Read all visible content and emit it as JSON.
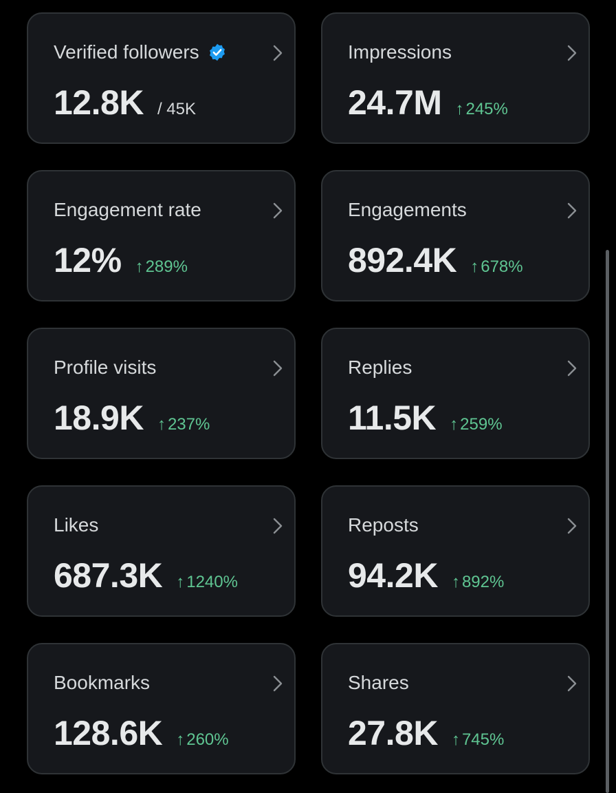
{
  "colors": {
    "background": "#000000",
    "card_background": "#16181c",
    "card_border": "#2f3336",
    "positive_change": "#5fc592",
    "verified_badge": "#1d9bf0"
  },
  "cards": [
    {
      "label": "Verified followers",
      "value": "12.8K",
      "sub": "/ 45K",
      "change": "",
      "icon": "verified-badge-icon"
    },
    {
      "label": "Impressions",
      "value": "24.7M",
      "change": "245%",
      "arrow": "↑"
    },
    {
      "label": "Engagement rate",
      "value": "12%",
      "change": "289%",
      "arrow": "↑"
    },
    {
      "label": "Engagements",
      "value": "892.4K",
      "change": "678%",
      "arrow": "↑"
    },
    {
      "label": "Profile visits",
      "value": "18.9K",
      "change": "237%",
      "arrow": "↑"
    },
    {
      "label": "Replies",
      "value": "11.5K",
      "change": "259%",
      "arrow": "↑"
    },
    {
      "label": "Likes",
      "value": "687.3K",
      "change": "1240%",
      "arrow": "↑"
    },
    {
      "label": "Reposts",
      "value": "94.2K",
      "change": "892%",
      "arrow": "↑"
    },
    {
      "label": "Bookmarks",
      "value": "128.6K",
      "change": "260%",
      "arrow": "↑"
    },
    {
      "label": "Shares",
      "value": "27.8K",
      "change": "745%",
      "arrow": "↑"
    }
  ]
}
